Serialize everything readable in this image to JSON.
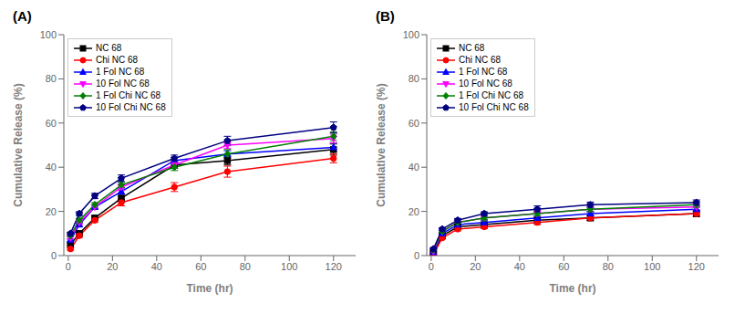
{
  "chart_data": [
    {
      "type": "line",
      "title": "(A)",
      "x_label": "Time (hr)",
      "y_label": "Cumulative Release (%)",
      "x": [
        1,
        5,
        12,
        24,
        48,
        72,
        120
      ],
      "xlim": [
        -2,
        130
      ],
      "xticks": [
        0,
        20,
        40,
        60,
        80,
        100,
        120
      ],
      "ylim": [
        0,
        100
      ],
      "yticks": [
        0,
        20,
        40,
        60,
        80,
        100
      ],
      "grid": false,
      "legend": "upper left",
      "series": [
        {
          "name": "NC 68",
          "color": "#000000",
          "marker": "square",
          "line_style": "solid",
          "values": [
            5,
            10,
            17,
            26,
            41,
            43,
            48
          ],
          "errors": [
            0.5,
            0.8,
            1.0,
            1.2,
            1.5,
            2.0,
            2.5
          ]
        },
        {
          "name": "Chi NC 68",
          "color": "#ff0000",
          "marker": "circle",
          "line_style": "solid",
          "values": [
            3,
            9,
            16,
            24,
            31,
            38,
            44
          ],
          "errors": [
            0.5,
            0.8,
            1.0,
            1.5,
            2.0,
            2.5,
            2.0
          ]
        },
        {
          "name": "1 Fol NC 68",
          "color": "#0000ff",
          "marker": "triangle-up",
          "line_style": "solid",
          "values": [
            7,
            14,
            22,
            29,
            43,
            46,
            49
          ],
          "errors": [
            0.5,
            0.8,
            1.0,
            1.2,
            1.5,
            1.5,
            2.0
          ]
        },
        {
          "name": "10 Fol NC 68",
          "color": "#ff00ff",
          "marker": "triangle-down",
          "line_style": "solid",
          "values": [
            8,
            15,
            22,
            31,
            41,
            50,
            53
          ],
          "errors": [
            0.5,
            0.8,
            1.0,
            1.5,
            1.5,
            1.5,
            2.0
          ]
        },
        {
          "name": "1 Fol Chi NC 68",
          "color": "#008000",
          "marker": "diamond",
          "line_style": "solid",
          "values": [
            9,
            16,
            23,
            32,
            40,
            46,
            54
          ],
          "errors": [
            0.5,
            0.8,
            1.0,
            1.2,
            1.5,
            2.0,
            2.0
          ]
        },
        {
          "name": "10 Fol Chi NC 68",
          "color": "#000080",
          "marker": "pentagon",
          "line_style": "solid",
          "values": [
            10,
            19,
            27,
            35,
            44,
            52,
            58
          ],
          "errors": [
            0.5,
            0.8,
            1.2,
            1.5,
            1.5,
            2.0,
            2.5
          ]
        }
      ]
    },
    {
      "type": "line",
      "title": "(B)",
      "x_label": "Time (hr)",
      "y_label": "Cumulative Release (%)",
      "x": [
        1,
        5,
        12,
        24,
        48,
        72,
        120
      ],
      "xlim": [
        -2,
        130
      ],
      "xticks": [
        0,
        20,
        40,
        60,
        80,
        100,
        120
      ],
      "ylim": [
        0,
        100
      ],
      "yticks": [
        0,
        20,
        40,
        60,
        80,
        100
      ],
      "grid": false,
      "legend": "upper left",
      "series": [
        {
          "name": "NC 68",
          "color": "#000000",
          "marker": "square",
          "line_style": "solid",
          "values": [
            1,
            9,
            13,
            14,
            16,
            17,
            19
          ],
          "errors": [
            0.3,
            0.5,
            0.8,
            0.8,
            1.0,
            1.0,
            1.2
          ]
        },
        {
          "name": "Chi NC 68",
          "color": "#ff0000",
          "marker": "circle",
          "line_style": "solid",
          "values": [
            0.5,
            8,
            12,
            13,
            15,
            17,
            19
          ],
          "errors": [
            0.3,
            0.5,
            0.8,
            0.8,
            1.0,
            1.0,
            1.2
          ]
        },
        {
          "name": "1 Fol NC 68",
          "color": "#0000ff",
          "marker": "triangle-up",
          "line_style": "solid",
          "values": [
            1.5,
            10,
            14,
            15,
            17,
            19,
            21
          ],
          "errors": [
            0.3,
            0.5,
            0.8,
            0.8,
            1.0,
            1.0,
            1.2
          ]
        },
        {
          "name": "10 Fol NC 68",
          "color": "#ff00ff",
          "marker": "triangle-down",
          "line_style": "solid",
          "values": [
            2,
            11,
            15,
            17,
            19,
            21,
            22
          ],
          "errors": [
            0.3,
            0.5,
            0.8,
            0.8,
            1.5,
            1.2,
            1.2
          ]
        },
        {
          "name": "1 Fol Chi NC 68",
          "color": "#008000",
          "marker": "diamond",
          "line_style": "solid",
          "values": [
            2.5,
            11,
            15,
            17,
            19,
            21,
            23
          ],
          "errors": [
            0.3,
            0.5,
            0.8,
            0.8,
            1.0,
            1.2,
            1.2
          ]
        },
        {
          "name": "10 Fol Chi NC 68",
          "color": "#000080",
          "marker": "pentagon",
          "line_style": "solid",
          "values": [
            3,
            12,
            16,
            19,
            21,
            23,
            24
          ],
          "errors": [
            0.3,
            0.5,
            0.8,
            0.8,
            1.5,
            1.2,
            1.2
          ]
        }
      ]
    }
  ]
}
